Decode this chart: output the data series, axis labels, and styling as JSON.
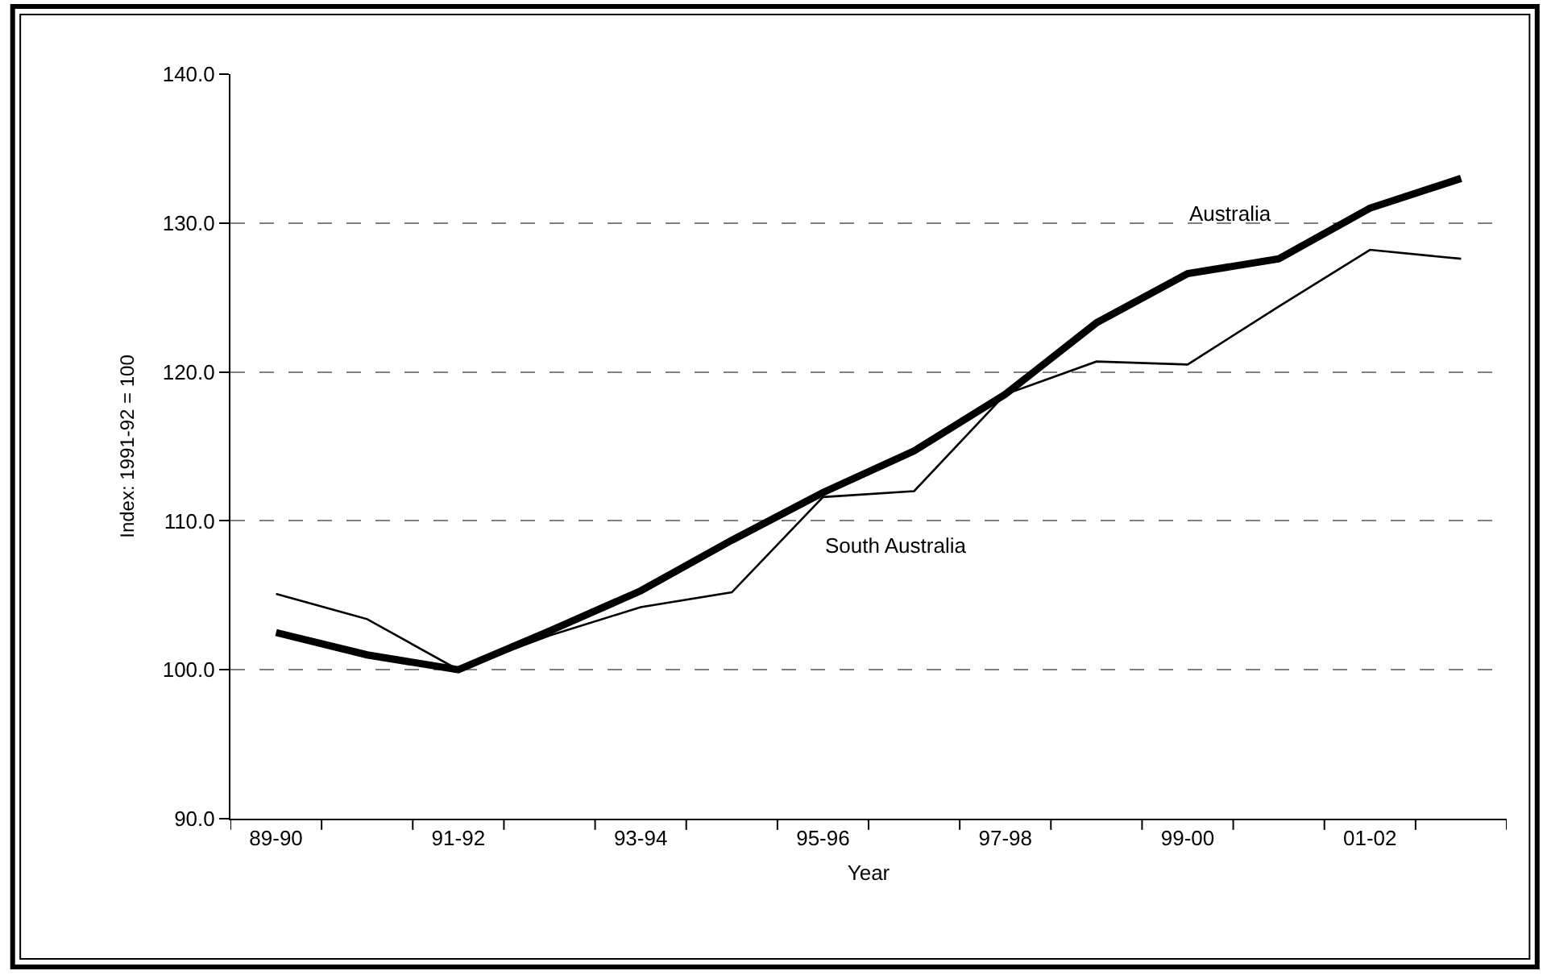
{
  "chart_data": {
    "type": "line",
    "xlabel": "Year",
    "ylabel": "Index: 1991-92 = 100",
    "categories": [
      "89-90",
      null,
      "91-92",
      null,
      "93-94",
      null,
      "95-96",
      null,
      "97-98",
      null,
      "99-00",
      null,
      "01-02",
      null
    ],
    "series": [
      {
        "name": "Australia",
        "color": "#000000",
        "values": [
          102.5,
          101.0,
          100.0,
          102.6,
          105.3,
          108.7,
          111.9,
          114.7,
          118.5,
          123.3,
          126.6,
          127.6,
          131.0,
          133.0
        ]
      },
      {
        "name": "South Australia",
        "color": "#000000",
        "values": [
          105.1,
          103.4,
          100.0,
          102.3,
          104.2,
          105.2,
          111.6,
          112.0,
          118.5,
          120.7,
          120.5,
          124.4,
          128.2,
          127.6
        ]
      }
    ],
    "ylim": [
      90,
      140
    ],
    "yticks": [
      {
        "value": 90,
        "label": "90.0"
      },
      {
        "value": 100,
        "label": "100.0"
      },
      {
        "value": 110,
        "label": "110.0"
      },
      {
        "value": 120,
        "label": "120.0"
      },
      {
        "value": 130,
        "label": "130.0"
      },
      {
        "value": 140,
        "label": "140.0"
      }
    ],
    "grid": "y",
    "legend": false,
    "marker": "none",
    "line_style": "solid"
  }
}
